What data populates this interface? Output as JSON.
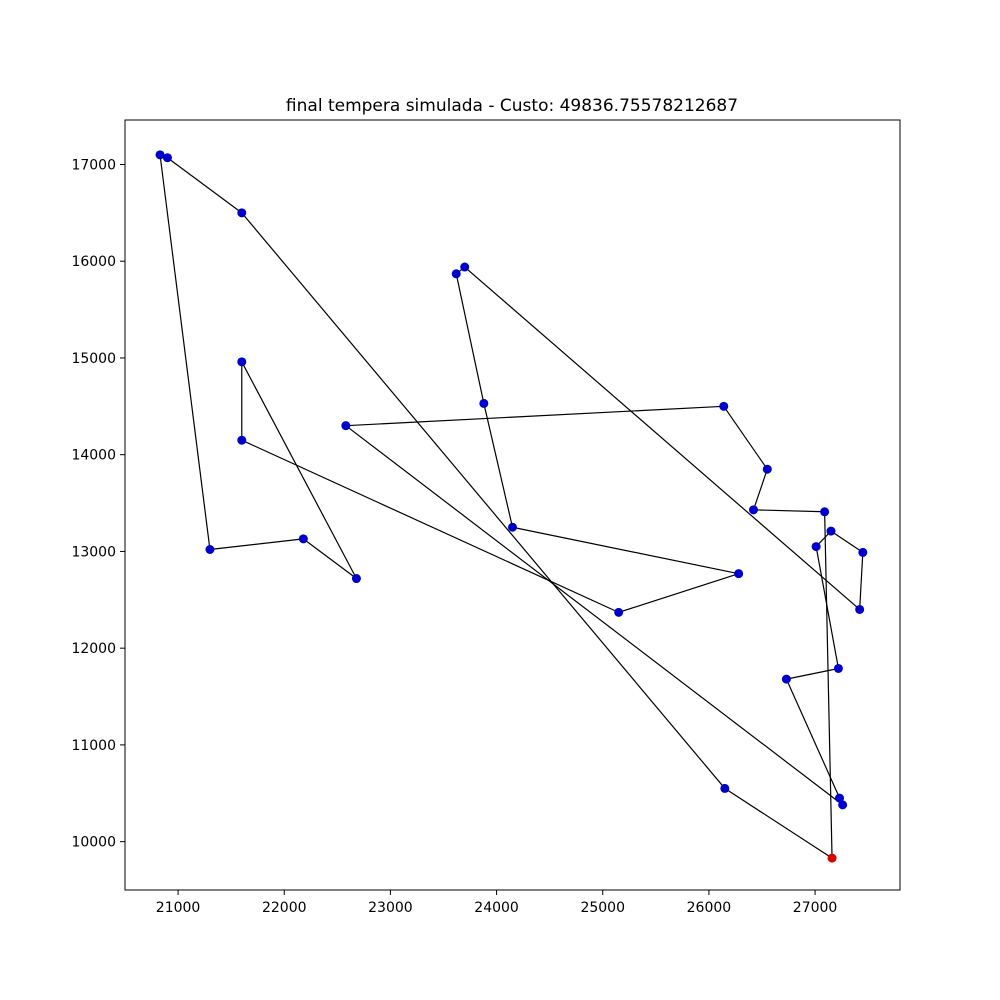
{
  "chart_data": {
    "type": "line",
    "title": "final tempera simulada - Custo: 49836.75578212687",
    "xlabel": "",
    "ylabel": "",
    "xlim": [
      20500,
      27800
    ],
    "ylim": [
      9500,
      17460
    ],
    "xticks": [
      21000,
      22000,
      23000,
      24000,
      25000,
      26000,
      27000
    ],
    "xtick_labels": [
      "21000",
      "22000",
      "23000",
      "24000",
      "25000",
      "26000",
      "27000"
    ],
    "yticks": [
      10000,
      11000,
      12000,
      13000,
      14000,
      15000,
      16000,
      17000
    ],
    "ytick_labels": [
      "10000",
      "11000",
      "12000",
      "13000",
      "14000",
      "15000",
      "16000",
      "17000"
    ],
    "grid": false,
    "line_color": "#000000",
    "point_color": "#0000cc",
    "start_point_color": "#dd0000",
    "start_point": {
      "x": 27160,
      "y": 9830
    },
    "route": [
      {
        "x": 27160,
        "y": 9830
      },
      {
        "x": 26150,
        "y": 10550
      },
      {
        "x": 21600,
        "y": 16500
      },
      {
        "x": 20900,
        "y": 17070
      },
      {
        "x": 20830,
        "y": 17100
      },
      {
        "x": 21300,
        "y": 13020
      },
      {
        "x": 22180,
        "y": 13130
      },
      {
        "x": 22680,
        "y": 12720
      },
      {
        "x": 21600,
        "y": 14960
      },
      {
        "x": 21600,
        "y": 14150
      },
      {
        "x": 25150,
        "y": 12370
      },
      {
        "x": 26280,
        "y": 12770
      },
      {
        "x": 24150,
        "y": 13250
      },
      {
        "x": 23880,
        "y": 14530
      },
      {
        "x": 23620,
        "y": 15870
      },
      {
        "x": 23700,
        "y": 15940
      },
      {
        "x": 27420,
        "y": 12400
      },
      {
        "x": 27450,
        "y": 12990
      },
      {
        "x": 27150,
        "y": 13210
      },
      {
        "x": 27010,
        "y": 13050
      },
      {
        "x": 27220,
        "y": 11790
      },
      {
        "x": 26730,
        "y": 11680
      },
      {
        "x": 27260,
        "y": 10380
      },
      {
        "x": 22580,
        "y": 14300
      },
      {
        "x": 26140,
        "y": 14500
      },
      {
        "x": 26550,
        "y": 13850
      },
      {
        "x": 26420,
        "y": 13430
      },
      {
        "x": 27090,
        "y": 13410
      },
      {
        "x": 27160,
        "y": 9830
      }
    ],
    "extra_points": [
      {
        "x": 27230,
        "y": 10450
      }
    ]
  }
}
